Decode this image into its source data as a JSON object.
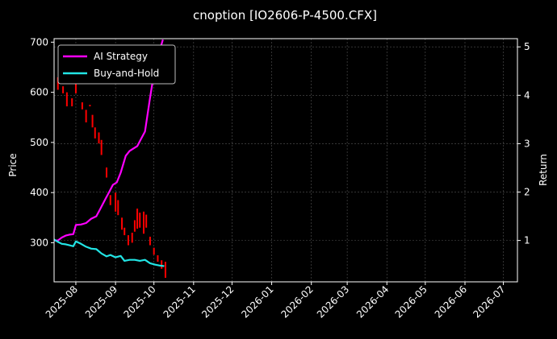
{
  "chart_data": {
    "type": "line",
    "title": "cnoption [IO2606-P-4500.CFX]",
    "ylabel_left": "Price",
    "ylabel_right": "Return",
    "x_ticks": [
      "2025-08",
      "2025-09",
      "2025-10",
      "2025-11",
      "2025-12",
      "2026-01",
      "2026-02",
      "2026-03",
      "2026-04",
      "2026-05",
      "2026-06",
      "2026-07"
    ],
    "x_range": [
      "2025-07-15",
      "2026-07-12"
    ],
    "y_left": {
      "ylim": [
        222,
        707
      ],
      "ticks": [
        300,
        400,
        500,
        600,
        700
      ]
    },
    "y_right": {
      "ylim": [
        0.145,
        5.17
      ],
      "ticks": [
        1,
        2,
        3,
        4,
        5
      ]
    },
    "grid": true,
    "legend": {
      "placement": "top-left",
      "entries": [
        "AI Strategy",
        "Buy-and-Hold"
      ]
    },
    "colors": {
      "ai": "#ff00ff",
      "bh": "#22e5e5",
      "up": "#00c800",
      "down": "#ff0000",
      "grid": "#555555"
    },
    "series": [
      {
        "name": "AI Strategy",
        "axis": "right",
        "points": [
          [
            "2025-07-15",
            1.0
          ],
          [
            "2025-07-18",
            1.0
          ],
          [
            "2025-07-21",
            1.06
          ],
          [
            "2025-07-24",
            1.1
          ],
          [
            "2025-07-27",
            1.12
          ],
          [
            "2025-07-30",
            1.13
          ],
          [
            "2025-08-01",
            1.32
          ],
          [
            "2025-08-05",
            1.33
          ],
          [
            "2025-08-09",
            1.36
          ],
          [
            "2025-08-13",
            1.45
          ],
          [
            "2025-08-17",
            1.5
          ],
          [
            "2025-08-20",
            1.65
          ],
          [
            "2025-08-24",
            1.85
          ],
          [
            "2025-08-27",
            2.0
          ],
          [
            "2025-08-30",
            2.15
          ],
          [
            "2025-09-02",
            2.2
          ],
          [
            "2025-09-05",
            2.4
          ],
          [
            "2025-09-09",
            2.75
          ],
          [
            "2025-09-12",
            2.85
          ],
          [
            "2025-09-15",
            2.9
          ],
          [
            "2025-09-18",
            2.95
          ],
          [
            "2025-09-21",
            3.1
          ],
          [
            "2025-09-24",
            3.25
          ],
          [
            "2025-09-28",
            3.95
          ],
          [
            "2025-10-01",
            4.45
          ],
          [
            "2025-10-05",
            4.88
          ],
          [
            "2025-10-08",
            5.15
          ]
        ]
      },
      {
        "name": "Buy-and-Hold",
        "axis": "right",
        "points": [
          [
            "2025-07-15",
            1.02
          ],
          [
            "2025-07-18",
            0.97
          ],
          [
            "2025-07-21",
            0.93
          ],
          [
            "2025-07-24",
            0.92
          ],
          [
            "2025-07-27",
            0.9
          ],
          [
            "2025-07-30",
            0.88
          ],
          [
            "2025-08-01",
            0.98
          ],
          [
            "2025-08-05",
            0.93
          ],
          [
            "2025-08-09",
            0.87
          ],
          [
            "2025-08-13",
            0.83
          ],
          [
            "2025-08-17",
            0.82
          ],
          [
            "2025-08-21",
            0.73
          ],
          [
            "2025-08-25",
            0.67
          ],
          [
            "2025-08-28",
            0.7
          ],
          [
            "2025-09-01",
            0.65
          ],
          [
            "2025-09-05",
            0.68
          ],
          [
            "2025-09-08",
            0.58
          ],
          [
            "2025-09-12",
            0.6
          ],
          [
            "2025-09-16",
            0.6
          ],
          [
            "2025-09-20",
            0.58
          ],
          [
            "2025-09-24",
            0.6
          ],
          [
            "2025-09-28",
            0.53
          ],
          [
            "2025-10-02",
            0.5
          ],
          [
            "2025-10-06",
            0.48
          ],
          [
            "2025-10-09",
            0.47
          ]
        ]
      }
    ],
    "candles": [
      [
        "2025-07-18",
        630,
        605
      ],
      [
        "2025-07-22",
        612,
        598
      ],
      [
        "2025-07-25",
        600,
        572
      ],
      [
        "2025-07-29",
        588,
        572
      ],
      [
        "2025-08-01",
        618,
        598
      ],
      [
        "2025-08-06",
        580,
        566
      ],
      [
        "2025-08-09",
        565,
        540
      ],
      [
        "2025-08-12",
        575,
        572
      ],
      [
        "2025-08-14",
        555,
        530
      ],
      [
        "2025-08-16",
        530,
        508
      ],
      [
        "2025-08-19",
        520,
        498
      ],
      [
        "2025-08-21",
        505,
        475
      ],
      [
        "2025-08-25",
        450,
        430
      ],
      [
        "2025-08-28",
        395,
        375
      ],
      [
        "2025-09-01",
        400,
        362
      ],
      [
        "2025-09-03",
        385,
        355
      ],
      [
        "2025-09-06",
        350,
        326
      ],
      [
        "2025-09-08",
        330,
        315
      ],
      [
        "2025-09-11",
        315,
        295
      ],
      [
        "2025-09-14",
        320,
        300
      ],
      [
        "2025-09-16",
        345,
        322
      ],
      [
        "2025-09-18",
        368,
        328
      ],
      [
        "2025-09-20",
        360,
        330
      ],
      [
        "2025-09-23",
        362,
        318
      ],
      [
        "2025-09-25",
        356,
        330
      ],
      [
        "2025-09-28",
        312,
        295
      ],
      [
        "2025-10-01",
        290,
        276
      ],
      [
        "2025-10-04",
        275,
        262
      ],
      [
        "2025-10-07",
        265,
        248
      ],
      [
        "2025-10-10",
        262,
        230
      ]
    ]
  }
}
